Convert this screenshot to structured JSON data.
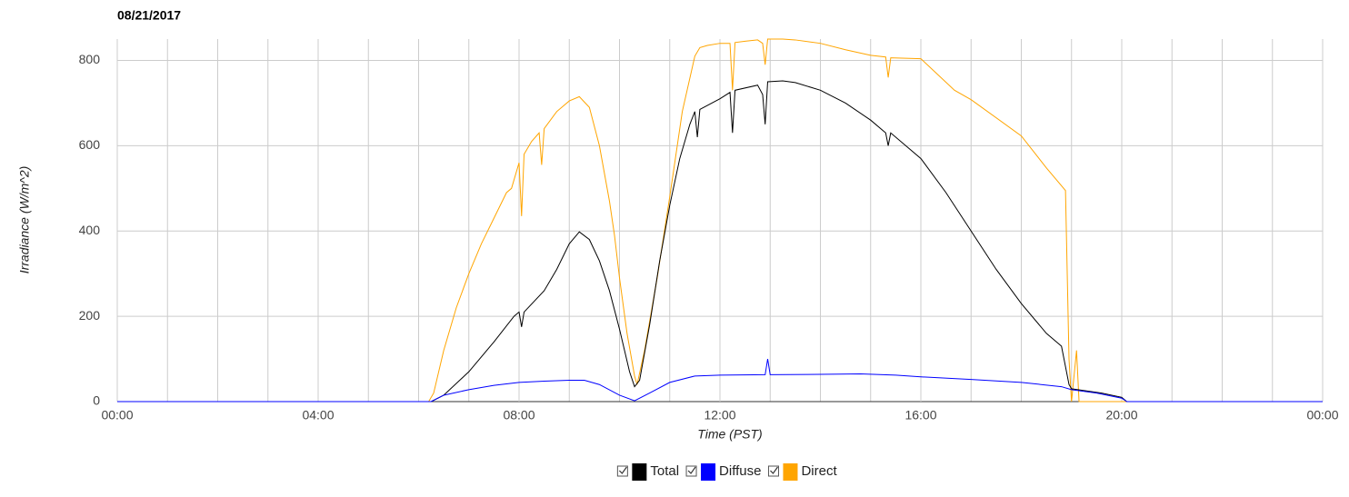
{
  "chart_data": {
    "type": "line",
    "title": "08/21/2017",
    "x_label": "Time (PST)",
    "y_label": "Irradiance (W/m^2)",
    "xlim": [
      0,
      24
    ],
    "ylim": [
      0,
      850
    ],
    "xticks": [
      {
        "value": 0,
        "label": "00:00"
      },
      {
        "value": 4,
        "label": "04:00"
      },
      {
        "value": 8,
        "label": "08:00"
      },
      {
        "value": 12,
        "label": "12:00"
      },
      {
        "value": 16,
        "label": "16:00"
      },
      {
        "value": 20,
        "label": "20:00"
      },
      {
        "value": 24,
        "label": "00:00"
      }
    ],
    "xminorticks": [
      1,
      2,
      3,
      5,
      6,
      7,
      9,
      10,
      11,
      13,
      14,
      15,
      17,
      18,
      19,
      21,
      22,
      23
    ],
    "yticks": [
      0,
      200,
      400,
      600,
      800
    ],
    "grid": true,
    "legend": "bottom",
    "series": [
      {
        "name": "Total",
        "color": "#000000",
        "x": [
          0,
          6.25,
          6.5,
          7.0,
          7.5,
          7.9,
          8.0,
          8.05,
          8.1,
          8.5,
          8.75,
          9.0,
          9.2,
          9.4,
          9.6,
          9.8,
          10.0,
          10.2,
          10.3,
          10.4,
          10.6,
          10.8,
          11.0,
          11.2,
          11.4,
          11.5,
          11.55,
          11.6,
          12.0,
          12.2,
          12.25,
          12.3,
          12.75,
          12.85,
          12.9,
          12.95,
          13.25,
          13.5,
          14.0,
          14.5,
          15.0,
          15.3,
          15.35,
          15.4,
          16.0,
          16.5,
          17.0,
          17.5,
          18.0,
          18.5,
          18.8,
          18.95,
          19.0,
          19.3,
          19.6,
          20.0,
          20.1,
          24
        ],
        "values": [
          0,
          0,
          15,
          70,
          140,
          200,
          210,
          175,
          210,
          260,
          310,
          370,
          398,
          380,
          330,
          260,
          170,
          70,
          35,
          50,
          180,
          330,
          460,
          570,
          650,
          680,
          620,
          685,
          710,
          725,
          630,
          730,
          742,
          720,
          650,
          750,
          752,
          748,
          730,
          700,
          660,
          630,
          600,
          630,
          570,
          490,
          400,
          310,
          230,
          160,
          130,
          40,
          30,
          25,
          20,
          10,
          0,
          0
        ]
      },
      {
        "name": "Diffuse",
        "color": "#0000ff",
        "x": [
          0,
          6.25,
          6.5,
          7.0,
          7.5,
          8.0,
          8.5,
          9.0,
          9.3,
          9.6,
          10.0,
          10.3,
          10.6,
          11.0,
          11.5,
          12.0,
          12.9,
          12.95,
          13.0,
          14.0,
          14.8,
          15.5,
          16.0,
          17.0,
          18.0,
          18.8,
          19.0,
          19.5,
          20.0,
          20.1,
          24
        ],
        "values": [
          0,
          0,
          15,
          28,
          38,
          45,
          48,
          50,
          50,
          40,
          15,
          2,
          20,
          45,
          60,
          62,
          63,
          100,
          63,
          64,
          65,
          62,
          58,
          52,
          45,
          35,
          28,
          20,
          8,
          0,
          0
        ]
      },
      {
        "name": "Direct",
        "color": "#ffa500",
        "x": [
          0,
          6.2,
          6.3,
          6.5,
          6.75,
          7.0,
          7.25,
          7.5,
          7.75,
          7.85,
          8.0,
          8.05,
          8.1,
          8.25,
          8.4,
          8.45,
          8.5,
          8.75,
          9.0,
          9.2,
          9.4,
          9.6,
          9.8,
          9.9,
          10.0,
          10.15,
          10.3,
          10.35,
          10.5,
          10.75,
          11.0,
          11.25,
          11.5,
          11.6,
          11.75,
          12.0,
          12.2,
          12.25,
          12.3,
          12.5,
          12.75,
          12.85,
          12.9,
          12.95,
          13.25,
          13.5,
          14.0,
          14.5,
          15.0,
          15.3,
          15.35,
          15.4,
          16.0,
          16.67,
          17.0,
          18.0,
          18.5,
          18.88,
          18.95,
          19.0,
          19.1,
          19.15,
          19.2,
          24
        ],
        "values": [
          0,
          0,
          20,
          120,
          220,
          300,
          370,
          430,
          490,
          500,
          560,
          435,
          580,
          610,
          630,
          555,
          640,
          680,
          705,
          715,
          690,
          600,
          470,
          390,
          290,
          160,
          60,
          40,
          120,
          290,
          480,
          680,
          810,
          830,
          835,
          840,
          840,
          730,
          842,
          845,
          848,
          840,
          790,
          850,
          850,
          848,
          840,
          825,
          812,
          808,
          760,
          806,
          804,
          730,
          708,
          623,
          548,
          495,
          100,
          0,
          120,
          0,
          0,
          0
        ]
      }
    ]
  }
}
